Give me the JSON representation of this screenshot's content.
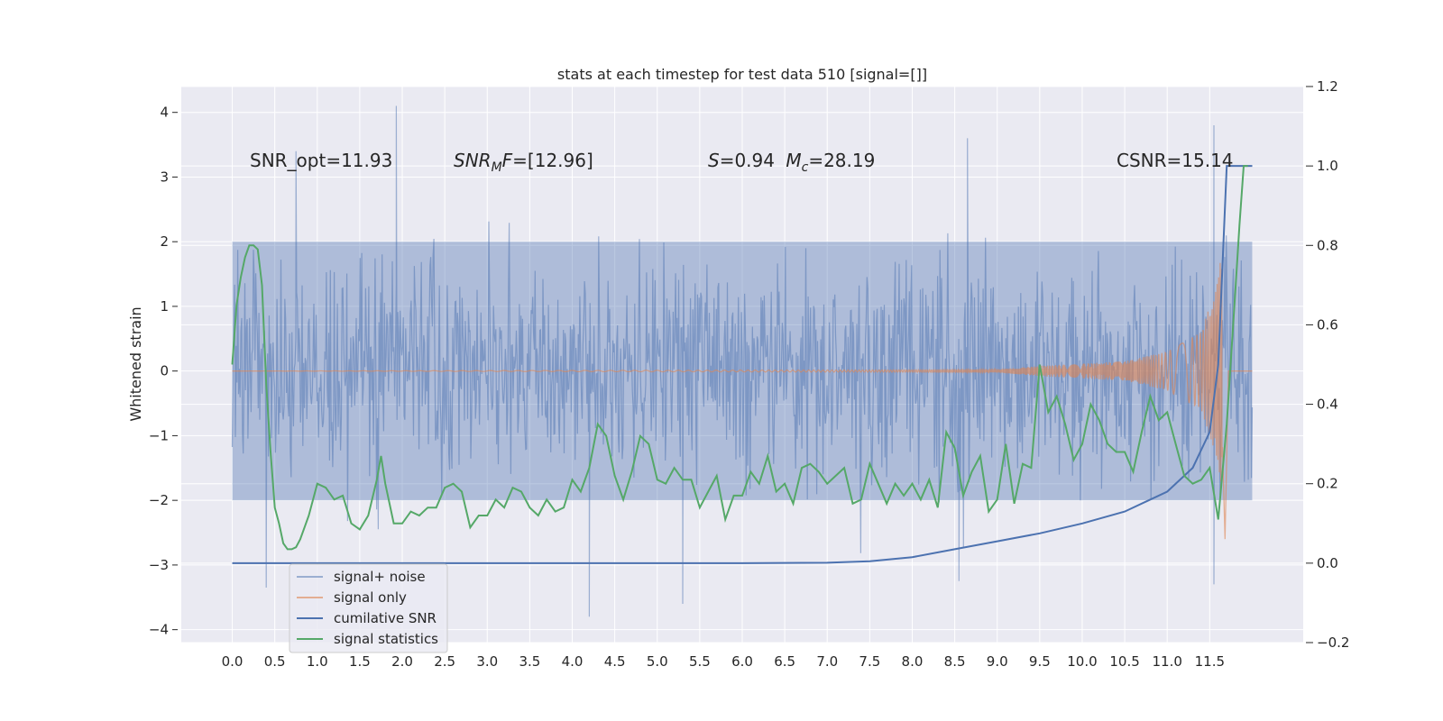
{
  "chart_data": {
    "type": "line",
    "title": "stats at each timestep for test data 510 [signal=[]]",
    "ylabel": "Whitened strain",
    "xlim": [
      -0.6,
      12.6
    ],
    "ylim": [
      -4.2,
      4.4
    ],
    "y2lim": [
      -0.2,
      1.2
    ],
    "grid": true,
    "legend_placement": "lower-left",
    "x_ticks": [
      "0.0",
      "0.5",
      "1.0",
      "1.5",
      "2.0",
      "2.5",
      "3.0",
      "3.5",
      "4.0",
      "4.5",
      "5.0",
      "5.5",
      "6.0",
      "6.5",
      "7.0",
      "7.5",
      "8.0",
      "8.5",
      "9.0",
      "9.5",
      "10.0",
      "10.5",
      "11.0",
      "11.5"
    ],
    "y_ticks": [
      "4",
      "3",
      "2",
      "1",
      "0",
      "−1",
      "−2",
      "−3",
      "−4"
    ],
    "y2_ticks": [
      "1.2",
      "1.0",
      "0.8",
      "0.6",
      "0.4",
      "0.2",
      "0.0",
      "−0.2"
    ],
    "annotations": [
      {
        "id": "snr-opt",
        "text": "SNR_opt=11.93"
      },
      {
        "id": "snr-mf",
        "text": "SNRMF=[12.96]"
      },
      {
        "id": "s-mc",
        "text": "S=0.94   Mc=28.19"
      },
      {
        "id": "csnr",
        "text": "CSNR=15.14"
      }
    ],
    "legend": [
      {
        "label": "signal+ noise",
        "color": "#4c72b0",
        "alpha": 0.5
      },
      {
        "label": "signal only",
        "color": "#dd8452",
        "alpha": 0.6
      },
      {
        "label": "cumilative SNR",
        "color": "#4c72b0",
        "alpha": 1.0
      },
      {
        "label": "signal statistics",
        "color": "#55a868",
        "alpha": 1.0
      }
    ],
    "series": [
      {
        "name": "signal+ noise",
        "axis": "left",
        "kind": "noise_envelope",
        "x_range": [
          0.0,
          12.0
        ],
        "typical_range": [
          -2.0,
          2.0
        ],
        "extremes": [
          {
            "x": 1.93,
            "y": 4.1
          },
          {
            "x": 8.65,
            "y": 3.6
          },
          {
            "x": 11.55,
            "y": 3.8
          },
          {
            "x": 0.75,
            "y": 3.4
          },
          {
            "x": 4.2,
            "y": -3.8
          },
          {
            "x": 5.3,
            "y": -3.6
          },
          {
            "x": 8.55,
            "y": -3.25
          },
          {
            "x": 11.55,
            "y": -3.3
          },
          {
            "x": 0.4,
            "y": -3.35
          }
        ],
        "color": "#4c72b0"
      },
      {
        "name": "signal only",
        "axis": "left",
        "kind": "chirp",
        "x_range": [
          0.0,
          11.65
        ],
        "amplitude_points": [
          [
            0,
            0
          ],
          [
            9.0,
            0.02
          ],
          [
            9.5,
            0.08
          ],
          [
            10.5,
            0.15
          ],
          [
            11.0,
            0.3
          ],
          [
            11.4,
            0.6
          ],
          [
            11.6,
            1.4
          ],
          [
            11.65,
            2.0
          ]
        ],
        "color": "#dd8452"
      },
      {
        "name": "cumilative SNR",
        "axis": "right",
        "x": [
          0,
          6.0,
          7.0,
          7.5,
          8.0,
          8.5,
          9.0,
          9.5,
          10.0,
          10.5,
          11.0,
          11.3,
          11.5,
          11.6,
          11.65,
          11.7,
          11.75,
          12.0
        ],
        "y": [
          0.0,
          0.0,
          0.001,
          0.005,
          0.015,
          0.035,
          0.055,
          0.075,
          0.1,
          0.13,
          0.18,
          0.24,
          0.33,
          0.5,
          0.75,
          1.0,
          1.0,
          1.0
        ],
        "color": "#4c72b0"
      },
      {
        "name": "signal statistics",
        "axis": "right",
        "x": [
          0.0,
          0.05,
          0.1,
          0.15,
          0.2,
          0.25,
          0.3,
          0.35,
          0.4,
          0.45,
          0.5,
          0.55,
          0.6,
          0.65,
          0.7,
          0.75,
          0.8,
          0.9,
          1.0,
          1.1,
          1.2,
          1.3,
          1.4,
          1.5,
          1.6,
          1.7,
          1.75,
          1.8,
          1.9,
          2.0,
          2.1,
          2.2,
          2.3,
          2.4,
          2.5,
          2.6,
          2.7,
          2.8,
          2.9,
          3.0,
          3.1,
          3.2,
          3.3,
          3.4,
          3.5,
          3.6,
          3.7,
          3.8,
          3.9,
          4.0,
          4.1,
          4.2,
          4.3,
          4.4,
          4.5,
          4.6,
          4.7,
          4.8,
          4.9,
          5.0,
          5.1,
          5.2,
          5.3,
          5.4,
          5.5,
          5.6,
          5.7,
          5.8,
          5.9,
          6.0,
          6.1,
          6.2,
          6.3,
          6.4,
          6.5,
          6.6,
          6.7,
          6.8,
          6.9,
          7.0,
          7.1,
          7.2,
          7.3,
          7.4,
          7.5,
          7.6,
          7.7,
          7.8,
          7.9,
          8.0,
          8.1,
          8.2,
          8.3,
          8.4,
          8.5,
          8.6,
          8.7,
          8.8,
          8.9,
          9.0,
          9.1,
          9.2,
          9.3,
          9.4,
          9.5,
          9.6,
          9.7,
          9.8,
          9.9,
          10.0,
          10.1,
          10.2,
          10.3,
          10.4,
          10.5,
          10.6,
          10.7,
          10.8,
          10.9,
          11.0,
          11.1,
          11.2,
          11.3,
          11.4,
          11.5,
          11.6,
          11.7,
          11.8,
          11.85,
          11.9,
          11.95
        ],
        "y": [
          0.5,
          0.65,
          0.72,
          0.77,
          0.8,
          0.8,
          0.79,
          0.7,
          0.45,
          0.28,
          0.14,
          0.1,
          0.05,
          0.035,
          0.035,
          0.04,
          0.06,
          0.12,
          0.2,
          0.19,
          0.16,
          0.17,
          0.1,
          0.085,
          0.12,
          0.21,
          0.27,
          0.2,
          0.1,
          0.1,
          0.13,
          0.12,
          0.14,
          0.14,
          0.19,
          0.2,
          0.18,
          0.09,
          0.12,
          0.12,
          0.16,
          0.14,
          0.19,
          0.18,
          0.14,
          0.12,
          0.16,
          0.13,
          0.14,
          0.21,
          0.18,
          0.24,
          0.35,
          0.32,
          0.22,
          0.16,
          0.23,
          0.32,
          0.3,
          0.21,
          0.2,
          0.24,
          0.21,
          0.21,
          0.14,
          0.18,
          0.22,
          0.11,
          0.17,
          0.17,
          0.23,
          0.2,
          0.27,
          0.18,
          0.2,
          0.15,
          0.24,
          0.25,
          0.23,
          0.2,
          0.22,
          0.24,
          0.15,
          0.16,
          0.25,
          0.2,
          0.15,
          0.2,
          0.17,
          0.2,
          0.16,
          0.21,
          0.14,
          0.33,
          0.29,
          0.17,
          0.23,
          0.27,
          0.13,
          0.16,
          0.3,
          0.15,
          0.25,
          0.24,
          0.5,
          0.38,
          0.42,
          0.35,
          0.26,
          0.3,
          0.4,
          0.36,
          0.3,
          0.28,
          0.28,
          0.23,
          0.33,
          0.42,
          0.36,
          0.38,
          0.3,
          0.22,
          0.2,
          0.21,
          0.24,
          0.11,
          0.35,
          0.68,
          0.85,
          1.0,
          1.0
        ],
        "color": "#55a868"
      }
    ]
  }
}
